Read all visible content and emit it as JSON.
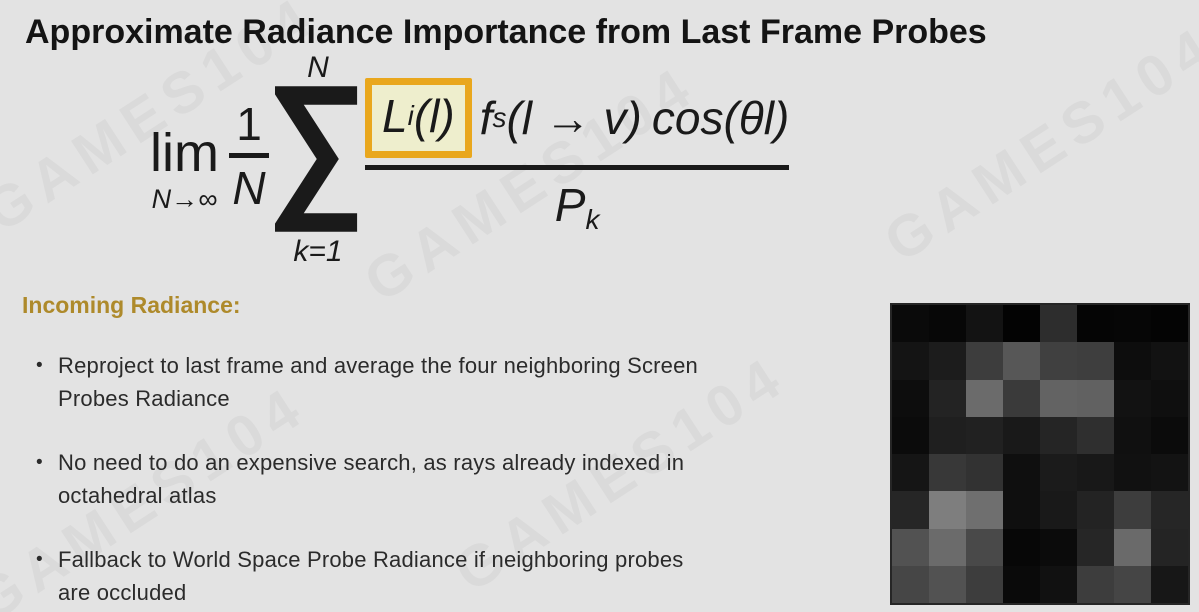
{
  "slide": {
    "title": "Approximate Radiance Importance from Last Frame Probes",
    "background_color": "#e3e3e3",
    "watermark": "GAMES104"
  },
  "formula": {
    "operator": "lim",
    "operator_subscript": "N→∞",
    "coeff_numerator": "1",
    "coeff_denominator": "N",
    "sum_symbol": "∑",
    "sum_upper": "N",
    "sum_lower": "k=1",
    "highlighted_term": {
      "base": "L",
      "subscript": "i",
      "argument": "(l)"
    },
    "brdf_term": {
      "base": "f",
      "subscript": "s",
      "argument": "(l → v)"
    },
    "cosine_term": {
      "function": "cos",
      "argument": "(θl)"
    },
    "denominator_term": {
      "base": "P",
      "subscript": "k"
    },
    "highlight_fill": "#eeeecd",
    "highlight_border": "#e9a71d"
  },
  "section_heading": {
    "text": "Incoming Radiance:",
    "color": "#ae8a2b"
  },
  "bullet_marker": "•",
  "bullets": [
    {
      "lines": [
        "Reproject to last frame and average the four neighboring Screen",
        "Probes Radiance"
      ]
    },
    {
      "lines": [
        "No need to do an expensive search, as rays already indexed in",
        "octahedral atlas"
      ]
    },
    {
      "lines": [
        "Fallback to World Space Probe Radiance if neighboring probes",
        "are occluded"
      ]
    }
  ],
  "probe_image": {
    "grid_size": "8x8",
    "border_color": "#262626",
    "pixels": [
      [
        "#0a0a0a",
        "#070707",
        "#131313",
        "#030303",
        "#2d2d2d",
        "#050505",
        "#060606",
        "#040404"
      ],
      [
        "#141414",
        "#1c1c1c",
        "#3d3d3d",
        "#575757",
        "#404040",
        "#3e3e3e",
        "#0d0d0d",
        "#121212"
      ],
      [
        "#0d0d0d",
        "#232323",
        "#6b6b6b",
        "#3a3a3a",
        "#636363",
        "#616161",
        "#121212",
        "#0f0f0f"
      ],
      [
        "#0b0b0b",
        "#1f1f1f",
        "#212121",
        "#191919",
        "#252525",
        "#2f2f2f",
        "#101010",
        "#0b0b0b"
      ],
      [
        "#151515",
        "#383838",
        "#323232",
        "#0f0f0f",
        "#1b1b1b",
        "#181818",
        "#111111",
        "#131313"
      ],
      [
        "#262626",
        "#7e7e7e",
        "#6f6f6f",
        "#0f0f0f",
        "#191919",
        "#232323",
        "#3d3d3d",
        "#262626"
      ],
      [
        "#525252",
        "#6b6b6b",
        "#494949",
        "#070707",
        "#0b0b0b",
        "#262626",
        "#6a6a6a",
        "#242424"
      ],
      [
        "#464646",
        "#525252",
        "#3d3d3d",
        "#0a0a0a",
        "#111111",
        "#3d3d3d",
        "#454545",
        "#171717"
      ]
    ]
  }
}
